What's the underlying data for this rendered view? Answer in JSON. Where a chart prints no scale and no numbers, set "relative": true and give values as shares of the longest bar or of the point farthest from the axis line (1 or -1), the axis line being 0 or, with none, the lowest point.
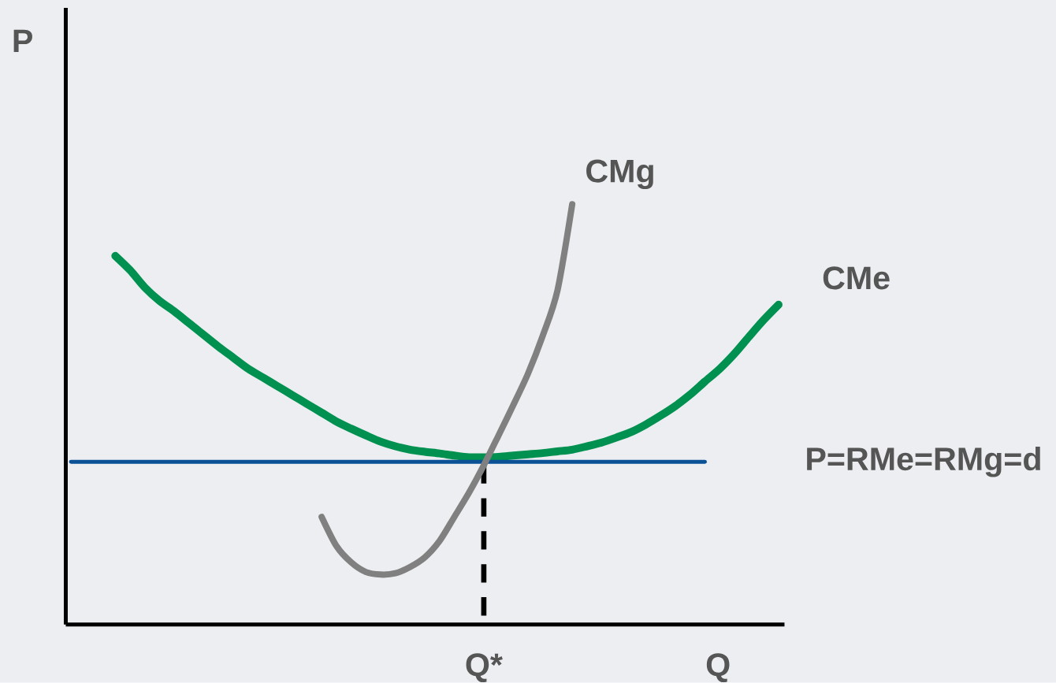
{
  "chart_data": {
    "type": "line",
    "xlabel": "Q",
    "ylabel": "P",
    "relative": true,
    "annotations": [
      "Q*"
    ],
    "categories": [
      null,
      null,
      null,
      null,
      null,
      null,
      null,
      null,
      null,
      null,
      null,
      null,
      null,
      null,
      null,
      null,
      null,
      null,
      null,
      null,
      null,
      null,
      null,
      null,
      null,
      null,
      null,
      null,
      null,
      null,
      null,
      null,
      null,
      null,
      null,
      null,
      null,
      null,
      null,
      null,
      null,
      null,
      null,
      null,
      null,
      null,
      null,
      null,
      null
    ],
    "series": [
      {
        "name": "CMe",
        "color": "#009150",
        "values": [
          null,
          null,
          null,
          0.877,
          0.843,
          0.802,
          0.77,
          0.745,
          0.717,
          0.689,
          0.661,
          0.635,
          0.609,
          0.588,
          0.567,
          0.546,
          0.525,
          0.504,
          0.483,
          0.466,
          0.45,
          0.435,
          0.424,
          0.416,
          0.411,
          0.407,
          0.402,
          0.398,
          0.398,
          0.399,
          0.402,
          0.405,
          0.408,
          0.412,
          0.416,
          0.424,
          0.433,
          0.445,
          0.458,
          0.476,
          0.497,
          0.52,
          0.547,
          0.578,
          0.608,
          0.644,
          0.685,
          0.725,
          0.761
        ]
      },
      {
        "name": "P=RMe=RMg=d",
        "color": "#0a5196",
        "values": [
          0.387,
          0.387,
          0.387,
          0.387,
          0.387,
          0.387,
          0.387,
          0.387,
          0.387,
          0.387,
          0.387,
          0.387,
          0.387,
          0.387,
          0.387,
          0.387,
          0.387,
          0.387,
          0.387,
          0.387,
          0.387,
          0.387,
          0.387,
          0.387,
          0.387,
          0.387,
          0.387,
          0.387,
          0.387,
          0.387,
          0.387,
          0.387,
          0.387,
          0.387,
          0.387,
          0.387,
          0.387,
          0.387,
          0.387,
          0.387,
          0.387,
          0.387,
          0.387,
          0.387,
          null,
          null,
          null,
          null,
          null
        ]
      },
      {
        "name": "CMg",
        "color": "#808080",
        "values": [
          null,
          null,
          null,
          null,
          null,
          null,
          null,
          null,
          null,
          null,
          null,
          null,
          null,
          null,
          null,
          null,
          null,
          0.256,
          0.187,
          0.148,
          0.125,
          0.119,
          0.122,
          0.137,
          0.16,
          0.199,
          0.256,
          0.314,
          0.379,
          0.45,
          0.522,
          0.597,
          0.687,
          0.795,
          1.0,
          null,
          null,
          null,
          null,
          null,
          null,
          null,
          null,
          null,
          null,
          null,
          null,
          null,
          null
        ]
      }
    ]
  }
}
